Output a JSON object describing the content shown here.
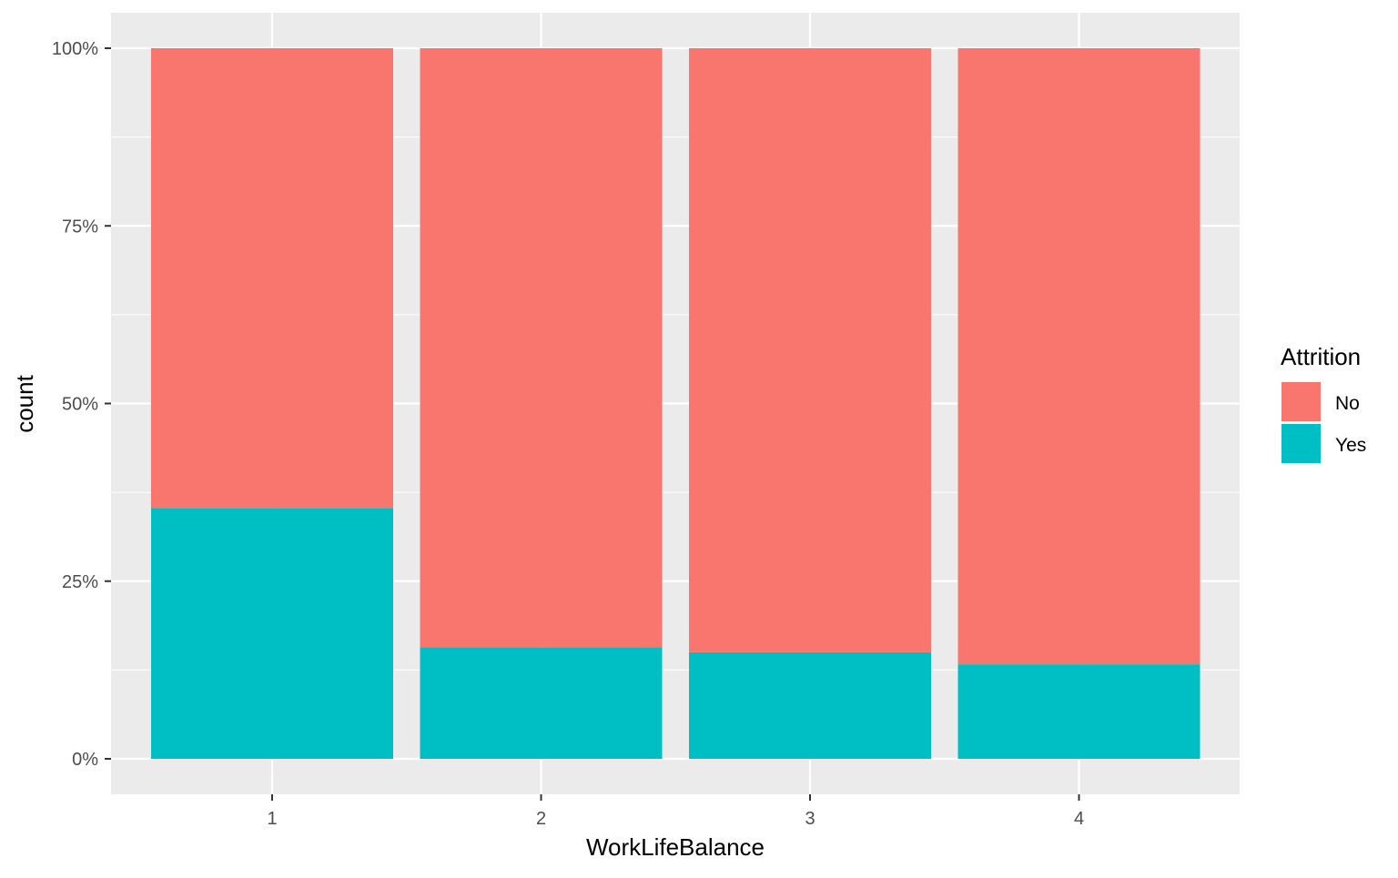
{
  "chart_data": {
    "type": "bar",
    "stacked": true,
    "normalized": true,
    "categories": [
      "1",
      "2",
      "3",
      "4"
    ],
    "series": [
      {
        "name": "No",
        "values": [
          64.7,
          84.3,
          85.0,
          86.7
        ],
        "color": "#F8766D"
      },
      {
        "name": "Yes",
        "values": [
          35.3,
          15.7,
          15.0,
          13.3
        ],
        "color": "#00BFC4"
      }
    ],
    "xlabel": "WorkLifeBalance",
    "ylabel": "count",
    "ylim": [
      0,
      100
    ],
    "yticks": [
      0,
      25,
      50,
      75,
      100
    ],
    "ytick_labels": [
      "0%",
      "25%",
      "50%",
      "75%",
      "100%"
    ],
    "grid": true,
    "panel_background": "#EBEBEB",
    "grid_color": "#FFFFFF",
    "legend": {
      "title": "Attrition",
      "position": "right",
      "entries": [
        "No",
        "Yes"
      ]
    }
  }
}
